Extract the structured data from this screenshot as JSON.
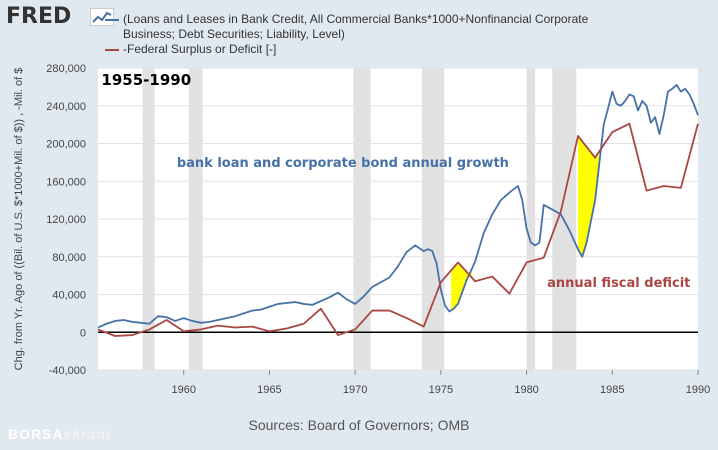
{
  "header": {
    "logo": "FRED",
    "watermark_a": "BORSA",
    "watermark_b": "ekranı"
  },
  "legend": [
    {
      "line1": "(Loans and Leases in Bank Credit, All Commercial Banks*1000+Nonfinancial Corporate",
      "line2": "Business; Debt Securities; Liability, Level)",
      "color": "#4572a7"
    },
    {
      "line1": "-Federal Surplus or Deficit [-]",
      "line2": "",
      "color": "#aa4643"
    }
  ],
  "source": "Sources: Board of Governors; OMB",
  "chart_data": {
    "type": "line",
    "title": "",
    "ylabel": "Chg. from Yr. Ago of ((Bil. of U.S. $*1000+Mil. of $)) , -Mil. of $",
    "xlim": [
      1955,
      1990
    ],
    "ylim": [
      -40000,
      280000
    ],
    "yticks": [
      -40000,
      0,
      40000,
      80000,
      120000,
      160000,
      200000,
      240000,
      280000
    ],
    "ytick_labels": [
      "-40,000",
      "0",
      "40,000",
      "80,000",
      "120,000",
      "160,000",
      "200,000",
      "240,000",
      "280,000"
    ],
    "xticks": [
      1960,
      1965,
      1970,
      1975,
      1980,
      1985,
      1990
    ],
    "xtick_labels": [
      "1960",
      "1965",
      "1970",
      "1975",
      "1980",
      "1985",
      "1990"
    ],
    "recessions": [
      [
        1957.6,
        1958.3
      ],
      [
        1960.3,
        1961.1
      ],
      [
        1969.9,
        1970.9
      ],
      [
        1973.9,
        1975.2
      ],
      [
        1980.0,
        1980.5
      ],
      [
        1981.5,
        1982.9
      ]
    ],
    "annotations": [
      {
        "text": "1955-1990",
        "x": 1955.2,
        "y": 262000,
        "color": "#000000",
        "bold": true,
        "size": 15
      },
      {
        "text": "bank loan and corporate bond annual growth",
        "x": 1959.6,
        "y": 175000,
        "color": "#4572a7",
        "bold": true,
        "size": 13
      },
      {
        "text": "annual fiscal deficit",
        "x": 1981.2,
        "y": 48000,
        "color": "#aa4643",
        "bold": true,
        "size": 13
      }
    ],
    "highlight_areas": [
      {
        "x_start": 1975.6,
        "x_end": 1976.8,
        "color": "#ffff00"
      },
      {
        "x_start": 1983.0,
        "x_end": 1984.2,
        "color": "#ffff00"
      }
    ],
    "series": [
      {
        "name": "(Loans and Leases in Bank Credit, All Commercial Banks*1000+Nonfinancial Corporate Business; Debt Securities; Liability, Level)",
        "color": "#4572a7",
        "x": [
          1955,
          1955.5,
          1956,
          1956.5,
          1957,
          1957.5,
          1958,
          1958.5,
          1959,
          1959.5,
          1960,
          1960.5,
          1961,
          1961.5,
          1962,
          1962.5,
          1963,
          1963.5,
          1964,
          1964.5,
          1965,
          1965.5,
          1966,
          1966.5,
          1967,
          1967.5,
          1968,
          1968.5,
          1969,
          1969.5,
          1970,
          1970.5,
          1971,
          1971.5,
          1972,
          1972.5,
          1973,
          1973.5,
          1974,
          1974.25,
          1974.5,
          1974.75,
          1975,
          1975.25,
          1975.5,
          1975.75,
          1976,
          1976.5,
          1977,
          1977.5,
          1978,
          1978.5,
          1979,
          1979.5,
          1979.75,
          1980,
          1980.25,
          1980.5,
          1980.75,
          1981,
          1981.5,
          1982,
          1982.5,
          1983,
          1983.25,
          1983.5,
          1984,
          1984.5,
          1984.75,
          1985,
          1985.25,
          1985.5,
          1985.75,
          1986,
          1986.25,
          1986.5,
          1986.75,
          1987,
          1987.25,
          1987.5,
          1987.75,
          1988,
          1988.25,
          1988.5,
          1988.75,
          1989,
          1989.25,
          1989.5,
          1989.75,
          1990
        ],
        "values": [
          5000,
          9000,
          12000,
          13000,
          11000,
          10000,
          9000,
          17000,
          16000,
          12000,
          15000,
          12000,
          10000,
          11000,
          13000,
          15000,
          17000,
          20000,
          23000,
          24000,
          27000,
          30000,
          31000,
          32000,
          30000,
          29000,
          33000,
          37000,
          42000,
          35000,
          30000,
          38000,
          48000,
          53000,
          58000,
          70000,
          85000,
          92000,
          86000,
          88000,
          86000,
          73000,
          45000,
          28000,
          22000,
          25000,
          30000,
          55000,
          75000,
          105000,
          125000,
          140000,
          148000,
          155000,
          140000,
          110000,
          95000,
          92000,
          95000,
          135000,
          130000,
          125000,
          108000,
          88000,
          80000,
          95000,
          140000,
          220000,
          237000,
          255000,
          242000,
          240000,
          245000,
          252000,
          250000,
          235000,
          245000,
          240000,
          222000,
          228000,
          210000,
          230000,
          255000,
          258000,
          262000,
          255000,
          258000,
          252000,
          242000,
          230000
        ]
      },
      {
        "name": "-Federal Surplus or Deficit [-]",
        "color": "#aa4643",
        "x": [
          1955,
          1956,
          1957,
          1958,
          1959,
          1960,
          1961,
          1962,
          1963,
          1964,
          1965,
          1966,
          1967,
          1968,
          1969,
          1970,
          1971,
          1972,
          1973,
          1974,
          1975,
          1976,
          1977,
          1978,
          1979,
          1980,
          1981,
          1982,
          1983,
          1984,
          1985,
          1986,
          1987,
          1988,
          1989,
          1990
        ],
        "values": [
          3000,
          -4000,
          -3000,
          3000,
          13000,
          1000,
          3000,
          7000,
          5000,
          6000,
          1000,
          4000,
          9000,
          25000,
          -3000,
          3000,
          23000,
          23000,
          15000,
          6000,
          53000,
          74000,
          54000,
          59000,
          41000,
          74000,
          79000,
          128000,
          208000,
          185000,
          212000,
          221000,
          150000,
          155000,
          153000,
          221000
        ]
      }
    ]
  }
}
